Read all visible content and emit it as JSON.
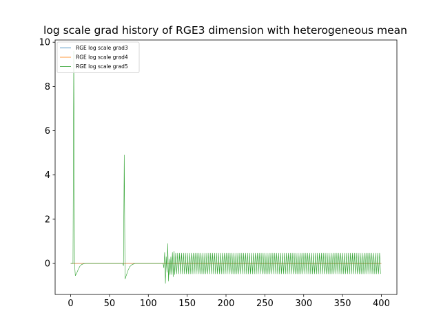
{
  "chart_data": {
    "type": "line",
    "title": "log scale grad history of RGE3 dimension with heterogeneous mean",
    "xlabel": "",
    "ylabel": "",
    "xlim": [
      -20,
      420
    ],
    "ylim": [
      -1.4,
      10.1
    ],
    "xticks": [
      0,
      50,
      100,
      150,
      200,
      250,
      300,
      350,
      400
    ],
    "yticks": [
      0,
      2,
      4,
      6,
      8,
      10
    ],
    "grid": false,
    "legend_position": "top-left",
    "series": [
      {
        "name": "RGE log scale grad3",
        "color": "#1f77b4",
        "points": [
          [
            0,
            0.0
          ],
          [
            400,
            0.0
          ]
        ]
      },
      {
        "name": "RGE log scale grad4",
        "color": "#ff7f0e",
        "points": [
          [
            0,
            0.0
          ],
          [
            400,
            0.0
          ]
        ]
      },
      {
        "name": "RGE log scale grad5",
        "color": "#2ca02c",
        "points": [
          [
            0,
            0.0
          ],
          [
            3,
            0.0
          ],
          [
            4,
            9.6
          ],
          [
            5,
            0.0
          ],
          [
            6,
            -0.55
          ],
          [
            8,
            -0.42
          ],
          [
            10,
            -0.25
          ],
          [
            12,
            -0.12
          ],
          [
            14,
            -0.05
          ],
          [
            17,
            -0.01
          ],
          [
            20,
            0.0
          ],
          [
            67,
            0.0
          ],
          [
            68,
            -0.1
          ],
          [
            69,
            4.9
          ],
          [
            70,
            -0.7
          ],
          [
            72,
            -0.5
          ],
          [
            74,
            -0.3
          ],
          [
            76,
            -0.15
          ],
          [
            79,
            -0.05
          ],
          [
            83,
            0.0
          ],
          [
            119,
            0.0
          ],
          [
            120,
            -0.2
          ],
          [
            121,
            0.5
          ],
          [
            122,
            -0.9
          ],
          [
            123,
            0.3
          ],
          [
            124,
            -0.4
          ],
          [
            125,
            0.9
          ],
          [
            126,
            -0.8
          ],
          [
            127,
            0.2
          ],
          [
            128,
            -0.5
          ],
          [
            129,
            0.3
          ],
          [
            130,
            -0.5
          ],
          [
            131,
            0.5
          ],
          [
            132,
            -0.6
          ],
          [
            133,
            0.55
          ],
          [
            134,
            -0.5
          ]
        ],
        "oscillation": {
          "x_start": 134,
          "x_end": 400,
          "period": 2.5,
          "amplitude": 0.47
        }
      }
    ]
  }
}
